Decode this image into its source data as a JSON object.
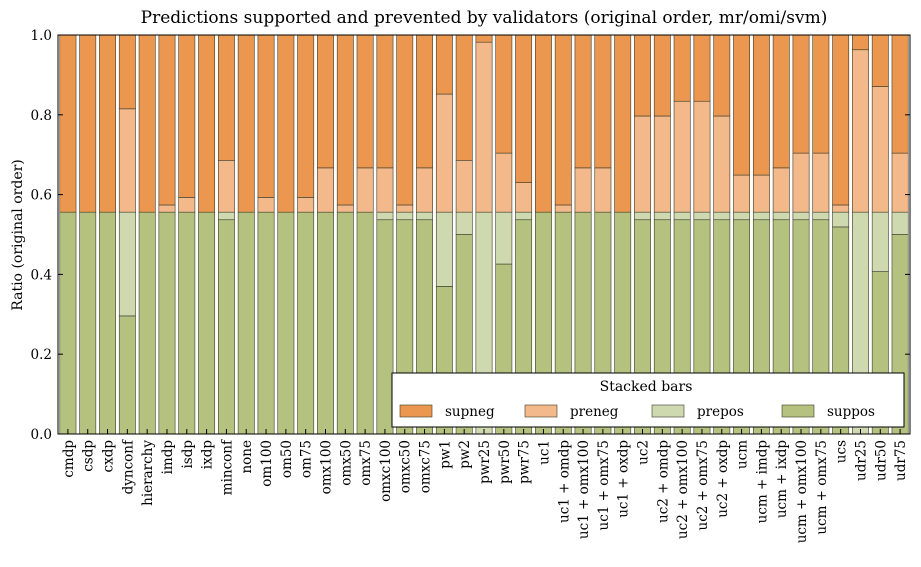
{
  "chart_data": {
    "type": "bar",
    "stacked": true,
    "title": "Predictions supported and prevented by validators (original order, mr/omi/svm)",
    "xlabel": "",
    "ylabel": "Ratio (original order)",
    "ylim": [
      0,
      1.0
    ],
    "yticks": [
      "0.0",
      "0.2",
      "0.4",
      "0.6",
      "0.8",
      "1.0"
    ],
    "grid": false,
    "legend": {
      "title": "Stacked bars",
      "placement": "bottom-right",
      "entries": [
        "supneg",
        "preneg",
        "prepos",
        "suppos"
      ]
    },
    "categories": [
      "cmdp",
      "csdp",
      "cxdp",
      "dynconf",
      "hierarchy",
      "imdp",
      "isdp",
      "ixdp",
      "minconf",
      "none",
      "om100",
      "om50",
      "om75",
      "omx100",
      "omx50",
      "omx75",
      "omxc100",
      "omxc50",
      "omxc75",
      "pw1",
      "pw2",
      "pwr25",
      "pwr50",
      "pwr75",
      "uc1",
      "uc1 + omdp",
      "uc1 + omx100",
      "uc1 + omx75",
      "uc1 + oxdp",
      "uc2",
      "uc2 + omdp",
      "uc2 + omx100",
      "uc2 + omx75",
      "uc2 + oxdp",
      "ucm",
      "ucm + imdp",
      "ucm + ixdp",
      "ucm + omx100",
      "ucm + omx75",
      "ucs",
      "udr25",
      "udr50",
      "udr75"
    ],
    "series": [
      {
        "name": "suppos",
        "color": "#b5c27f",
        "values": [
          0.556,
          0.556,
          0.556,
          0.296,
          0.556,
          0.556,
          0.556,
          0.556,
          0.537,
          0.556,
          0.556,
          0.556,
          0.556,
          0.556,
          0.556,
          0.556,
          0.537,
          0.537,
          0.537,
          0.37,
          0.5,
          0.0,
          0.426,
          0.537,
          0.556,
          0.556,
          0.556,
          0.556,
          0.556,
          0.537,
          0.537,
          0.537,
          0.537,
          0.537,
          0.537,
          0.537,
          0.537,
          0.537,
          0.537,
          0.519,
          0.0,
          0.407,
          0.5
        ]
      },
      {
        "name": "prepos",
        "color": "#cfd9b0",
        "values": [
          0.0,
          0.0,
          0.0,
          0.26,
          0.0,
          0.0,
          0.0,
          0.0,
          0.019,
          0.0,
          0.0,
          0.0,
          0.0,
          0.0,
          0.0,
          0.0,
          0.019,
          0.019,
          0.019,
          0.186,
          0.056,
          0.556,
          0.13,
          0.019,
          0.0,
          0.0,
          0.0,
          0.0,
          0.0,
          0.019,
          0.019,
          0.019,
          0.019,
          0.019,
          0.019,
          0.019,
          0.019,
          0.019,
          0.019,
          0.037,
          0.556,
          0.149,
          0.056
        ]
      },
      {
        "name": "preneg",
        "color": "#f3b98a",
        "values": [
          0.0,
          0.0,
          0.0,
          0.259,
          0.0,
          0.018,
          0.037,
          0.0,
          0.13,
          0.0,
          0.037,
          0.0,
          0.037,
          0.111,
          0.018,
          0.111,
          0.111,
          0.018,
          0.111,
          0.296,
          0.13,
          0.426,
          0.148,
          0.074,
          0.0,
          0.018,
          0.111,
          0.111,
          0.0,
          0.241,
          0.241,
          0.278,
          0.278,
          0.241,
          0.093,
          0.093,
          0.111,
          0.148,
          0.148,
          0.018,
          0.407,
          0.315,
          0.148
        ]
      },
      {
        "name": "supneg",
        "color": "#eb9750",
        "values": [
          0.444,
          0.444,
          0.444,
          0.185,
          0.444,
          0.426,
          0.407,
          0.444,
          0.314,
          0.444,
          0.407,
          0.444,
          0.407,
          0.333,
          0.426,
          0.333,
          0.333,
          0.426,
          0.333,
          0.148,
          0.314,
          0.018,
          0.296,
          0.37,
          0.444,
          0.426,
          0.333,
          0.333,
          0.444,
          0.203,
          0.203,
          0.166,
          0.166,
          0.203,
          0.351,
          0.351,
          0.333,
          0.296,
          0.296,
          0.426,
          0.037,
          0.129,
          0.296
        ]
      }
    ]
  }
}
